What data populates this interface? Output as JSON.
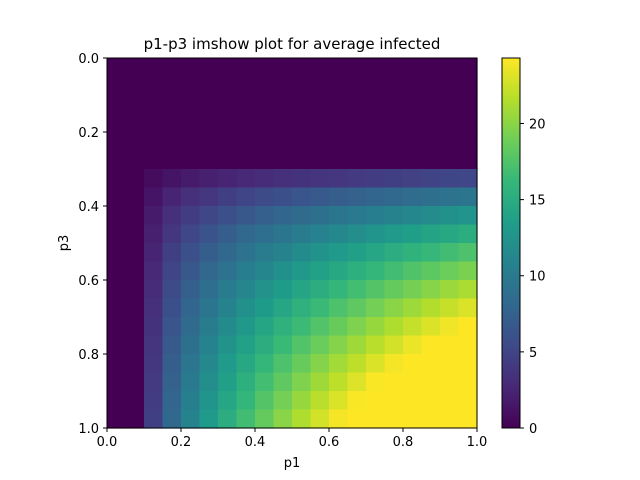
{
  "chart_data": {
    "type": "heatmap",
    "title": "p1-p3 imshow plot for average infected",
    "xlabel": "p1",
    "ylabel": "p3",
    "xlim": [
      0.0,
      1.0
    ],
    "ylim": [
      0.0,
      1.0
    ],
    "y_inverted": true,
    "xticks": [
      "0.0",
      "0.2",
      "0.4",
      "0.6",
      "0.8",
      "1.0"
    ],
    "yticks": [
      "0.0",
      "0.2",
      "0.4",
      "0.6",
      "0.8",
      "1.0"
    ],
    "x_values": [
      0.025,
      0.075,
      0.125,
      0.175,
      0.225,
      0.275,
      0.325,
      0.375,
      0.425,
      0.475,
      0.525,
      0.575,
      0.625,
      0.675,
      0.725,
      0.775,
      0.825,
      0.875,
      0.925,
      0.975
    ],
    "y_values": [
      0.025,
      0.075,
      0.125,
      0.175,
      0.225,
      0.275,
      0.325,
      0.375,
      0.425,
      0.475,
      0.525,
      0.575,
      0.625,
      0.675,
      0.725,
      0.775,
      0.825,
      0.875,
      0.925,
      0.975
    ],
    "model": "value = 1.06*(p1-0.10)^0.55*(p3-0.30)^0.55*40 for p1>=0.10 and p3>=0.30, else 0",
    "colorbar": {
      "colormap": "viridis",
      "min": 0,
      "max": 24.3,
      "ticks": [
        "0",
        "5",
        "10",
        "15",
        "20"
      ]
    },
    "colormap_stops": [
      "#440154",
      "#482878",
      "#3e4a89",
      "#31688e",
      "#26828e",
      "#1f9e89",
      "#35b779",
      "#6ece58",
      "#b5de2b",
      "#fde725"
    ]
  }
}
